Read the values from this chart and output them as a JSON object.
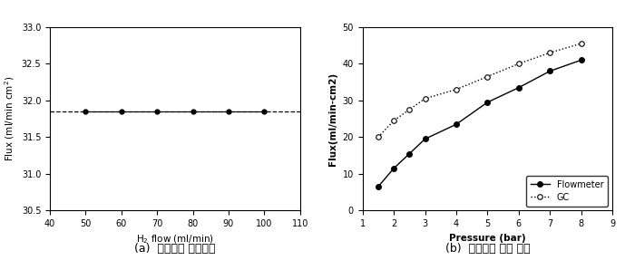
{
  "left": {
    "x": [
      50,
      60,
      70,
      80,
      90,
      100
    ],
    "y": [
      31.85,
      31.85,
      31.85,
      31.85,
      31.85,
      31.85
    ],
    "hline_y": 31.85,
    "xlim": [
      40,
      110
    ],
    "ylim": [
      30.5,
      33.0
    ],
    "yticks": [
      30.5,
      31.0,
      31.5,
      32.0,
      32.5,
      33.0
    ],
    "xticks": [
      40,
      50,
      60,
      70,
      80,
      90,
      100,
      110
    ],
    "xlabel": "H$_2$ flow (ml/min)",
    "ylabel": "Flux (ml/min cm$^2$)",
    "caption": "(a)  공급가스 유량변화"
  },
  "right": {
    "flowmeter_x": [
      1.5,
      2.0,
      2.5,
      3.0,
      4.0,
      5.0,
      6.0,
      7.0,
      8.0
    ],
    "flowmeter_y": [
      6.5,
      11.5,
      15.5,
      19.5,
      23.5,
      29.5,
      33.5,
      38.0,
      41.0
    ],
    "gc_x": [
      1.5,
      2.0,
      2.5,
      3.0,
      4.0,
      5.0,
      6.0,
      7.0,
      8.0
    ],
    "gc_y": [
      20.0,
      24.5,
      27.5,
      30.5,
      33.0,
      36.5,
      40.0,
      43.0,
      45.5
    ],
    "xlim": [
      1,
      9
    ],
    "ylim": [
      0,
      50
    ],
    "yticks": [
      0,
      10,
      20,
      30,
      40,
      50
    ],
    "xticks": [
      1,
      2,
      3,
      4,
      5,
      6,
      7,
      8,
      9
    ],
    "xlabel": "Pressure (bar)",
    "ylabel": "Flux(ml/min-cm2)",
    "caption": "(b)  공급가스 압력 변화",
    "legend_flowmeter": "Flowmeter",
    "legend_gc": "GC"
  },
  "bg_color": "#ffffff",
  "line_color": "#000000"
}
